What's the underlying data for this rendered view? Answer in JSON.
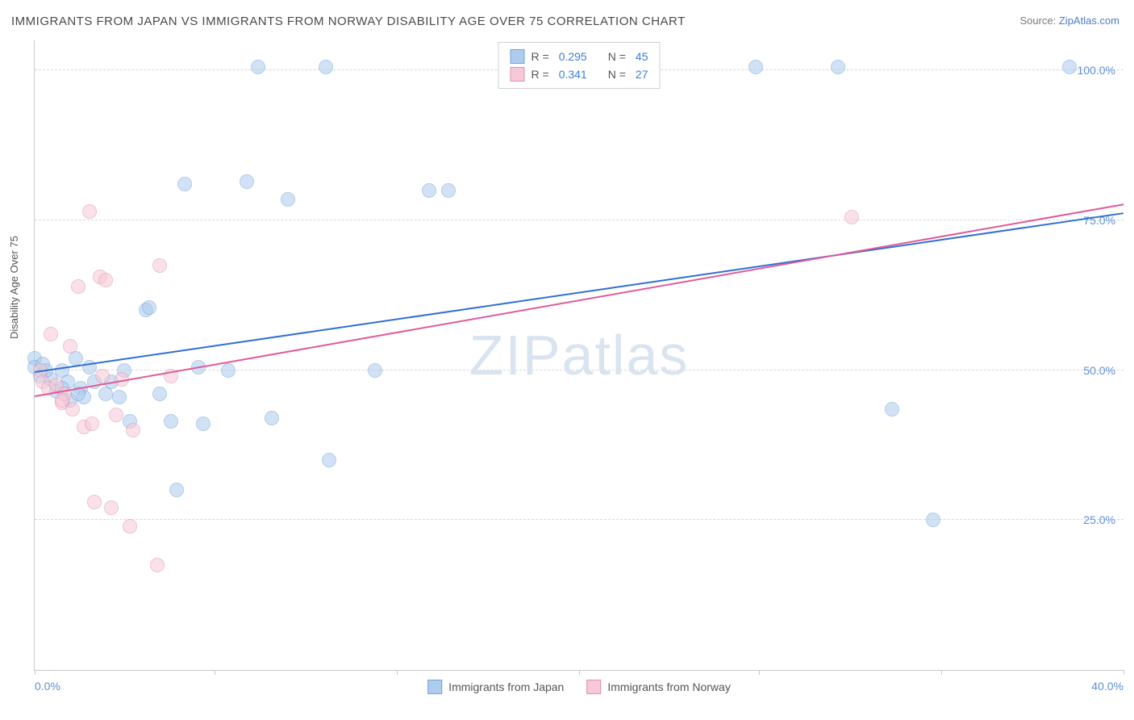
{
  "title": "IMMIGRANTS FROM JAPAN VS IMMIGRANTS FROM NORWAY DISABILITY AGE OVER 75 CORRELATION CHART",
  "source_prefix": "Source: ",
  "source_link": "ZipAtlas.com",
  "ylabel": "Disability Age Over 75",
  "watermark_a": "ZIP",
  "watermark_b": "atlas",
  "chart": {
    "type": "scatter",
    "xlim": [
      0,
      40
    ],
    "ylim": [
      0,
      105
    ],
    "x_tick_positions": [
      0,
      6.6,
      13.3,
      20,
      26.6,
      33.3,
      40
    ],
    "x_label_min": "0.0%",
    "x_label_max": "40.0%",
    "y_gridlines": [
      25,
      50,
      75,
      100
    ],
    "y_tick_labels": [
      "25.0%",
      "50.0%",
      "75.0%",
      "100.0%"
    ],
    "background_color": "#ffffff",
    "grid_color": "#d9d9d9",
    "axis_color": "#c9c9c9",
    "tick_label_color": "#5a8fd6",
    "tick_fontsize": 14,
    "label_fontsize": 13,
    "marker_radius": 8,
    "marker_opacity": 0.55
  },
  "series": [
    {
      "name": "Immigrants from Japan",
      "R": "0.295",
      "N": "45",
      "fill": "#aeccee",
      "stroke": "#6fa3dd",
      "trend_color": "#2f6fd1",
      "trend_start_y": 49.5,
      "trend_end_y": 76.0,
      "points": [
        [
          0.0,
          52.0
        ],
        [
          0.0,
          50.5
        ],
        [
          0.2,
          49.0
        ],
        [
          0.3,
          51.0
        ],
        [
          0.6,
          48.5
        ],
        [
          0.8,
          46.5
        ],
        [
          1.0,
          50.0
        ],
        [
          1.2,
          48.0
        ],
        [
          1.3,
          45.0
        ],
        [
          1.5,
          52.0
        ],
        [
          1.7,
          47.0
        ],
        [
          1.8,
          45.5
        ],
        [
          2.0,
          50.5
        ],
        [
          2.2,
          48.0
        ],
        [
          2.6,
          46.0
        ],
        [
          2.8,
          48.0
        ],
        [
          3.1,
          45.5
        ],
        [
          3.3,
          50.0
        ],
        [
          3.5,
          41.5
        ],
        [
          4.1,
          60.0
        ],
        [
          4.2,
          60.5
        ],
        [
          4.6,
          46.0
        ],
        [
          5.0,
          41.5
        ],
        [
          5.2,
          30.0
        ],
        [
          5.5,
          81.0
        ],
        [
          6.0,
          50.5
        ],
        [
          6.2,
          41.0
        ],
        [
          7.1,
          50.0
        ],
        [
          7.8,
          81.5
        ],
        [
          8.2,
          100.5
        ],
        [
          8.7,
          42.0
        ],
        [
          9.3,
          78.5
        ],
        [
          10.7,
          100.5
        ],
        [
          10.8,
          35.0
        ],
        [
          12.5,
          50.0
        ],
        [
          14.5,
          80.0
        ],
        [
          15.2,
          80.0
        ],
        [
          26.5,
          100.5
        ],
        [
          29.5,
          100.5
        ],
        [
          31.5,
          43.5
        ],
        [
          33.0,
          25.0
        ],
        [
          38.0,
          100.5
        ],
        [
          0.4,
          50.0
        ],
        [
          1.0,
          47.0
        ],
        [
          1.6,
          46.0
        ]
      ]
    },
    {
      "name": "Immigrants from Norway",
      "R": "0.341",
      "N": "27",
      "fill": "#f6c9d6",
      "stroke": "#e48fb0",
      "trend_color": "#e05a9a",
      "trend_start_y": 45.5,
      "trend_end_y": 77.5,
      "points": [
        [
          0.2,
          50.0
        ],
        [
          0.3,
          48.0
        ],
        [
          0.5,
          47.0
        ],
        [
          0.6,
          56.0
        ],
        [
          0.8,
          47.5
        ],
        [
          1.0,
          44.5
        ],
        [
          1.1,
          46.0
        ],
        [
          1.3,
          54.0
        ],
        [
          1.4,
          43.5
        ],
        [
          1.6,
          64.0
        ],
        [
          1.8,
          40.5
        ],
        [
          2.0,
          76.5
        ],
        [
          2.1,
          41.0
        ],
        [
          2.2,
          28.0
        ],
        [
          2.4,
          65.5
        ],
        [
          2.5,
          49.0
        ],
        [
          2.6,
          65.0
        ],
        [
          2.8,
          27.0
        ],
        [
          3.0,
          42.5
        ],
        [
          3.2,
          48.5
        ],
        [
          3.5,
          24.0
        ],
        [
          3.6,
          40.0
        ],
        [
          4.5,
          17.5
        ],
        [
          4.6,
          67.5
        ],
        [
          5.0,
          49.0
        ],
        [
          30.0,
          75.5
        ],
        [
          1.0,
          45.0
        ]
      ]
    }
  ],
  "legend_bottom": [
    {
      "label": "Immigrants from Japan",
      "fill": "#aeccee",
      "stroke": "#6fa3dd"
    },
    {
      "label": "Immigrants from Norway",
      "fill": "#f6c9d6",
      "stroke": "#e48fb0"
    }
  ]
}
